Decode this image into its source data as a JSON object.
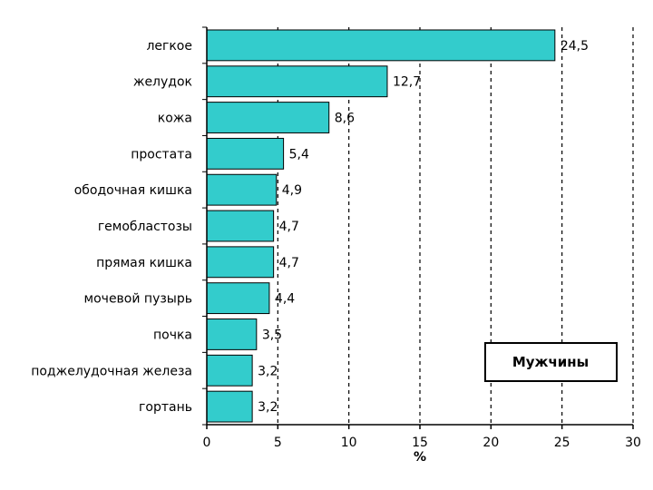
{
  "chart_data": {
    "type": "bar",
    "orientation": "horizontal",
    "categories": [
      "легкое",
      "желудок",
      "кожа",
      "простата",
      "ободочная кишка",
      "гемобластозы",
      "прямая кишка",
      "мочевой пузырь",
      "почка",
      "поджелудочная железа",
      "гортань"
    ],
    "values": [
      24.5,
      12.7,
      8.6,
      5.4,
      4.9,
      4.7,
      4.7,
      4.4,
      3.5,
      3.2,
      3.2
    ],
    "value_labels": [
      "24,5",
      "12,7",
      "8,6",
      "5,4",
      "4,9",
      "4,7",
      "4,7",
      "4,4",
      "3,5",
      "3,2",
      "3,2"
    ],
    "xlabel": "%",
    "xlim": [
      0,
      30
    ],
    "xticks": [
      0,
      5,
      10,
      15,
      20,
      25,
      30
    ],
    "xtick_labels": [
      "0",
      "5",
      "10",
      "15",
      "20",
      "25",
      "30"
    ],
    "grid": "vertical dashed",
    "legend_box": "Мужчины",
    "bar_color": "#33cccc",
    "bar_edge_color": "#000000"
  }
}
